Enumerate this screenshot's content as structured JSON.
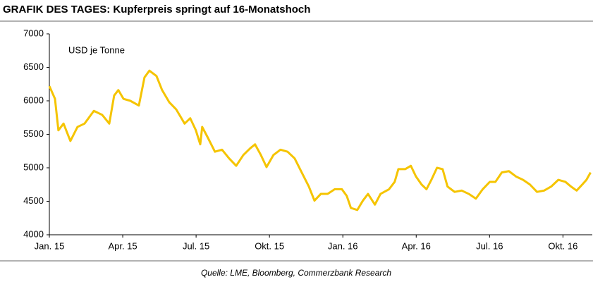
{
  "chart_data": {
    "type": "line",
    "title": "GRAFIK DES TAGES:  Kupferpreis springt auf 16-Monatshoch",
    "annotation": "USD je Tonne",
    "source": "Quelle: LME, Bloomberg, Commerzbank Research",
    "series": [
      {
        "name": "Kupferpreis",
        "color": "#f5c400",
        "x": [
          0,
          0.23,
          0.37,
          0.58,
          0.86,
          1.15,
          1.44,
          1.82,
          2.16,
          2.45,
          2.65,
          2.82,
          3.03,
          3.31,
          3.66,
          3.89,
          4.09,
          4.38,
          4.61,
          4.9,
          5.19,
          5.53,
          5.76,
          5.99,
          6.17,
          6.25,
          6.48,
          6.77,
          7.06,
          7.35,
          7.64,
          7.93,
          8.21,
          8.41,
          8.65,
          8.88,
          9.16,
          9.45,
          9.74,
          10.03,
          10.32,
          10.61,
          10.84,
          11.1,
          11.38,
          11.67,
          11.96,
          12.16,
          12.33,
          12.59,
          12.82,
          13.03,
          13.31,
          13.54,
          13.89,
          14.12,
          14.27,
          14.55,
          14.78,
          14.99,
          15.22,
          15.42,
          15.62,
          15.85,
          16.08,
          16.28,
          16.57,
          16.86,
          17.15,
          17.44,
          17.72,
          18.01,
          18.24,
          18.5,
          18.79,
          19.08,
          19.37,
          19.65,
          19.94,
          20.23,
          20.52,
          20.81,
          21.1,
          21.33,
          21.56,
          21.79,
          21.96,
          22.13
        ],
        "values": [
          6220,
          6030,
          5560,
          5660,
          5400,
          5610,
          5660,
          5850,
          5790,
          5660,
          6080,
          6160,
          6030,
          6000,
          5930,
          6350,
          6450,
          6370,
          6160,
          5980,
          5870,
          5660,
          5740,
          5560,
          5350,
          5610,
          5450,
          5240,
          5270,
          5140,
          5030,
          5190,
          5290,
          5350,
          5190,
          5010,
          5190,
          5270,
          5240,
          5140,
          4930,
          4720,
          4510,
          4610,
          4610,
          4680,
          4680,
          4580,
          4400,
          4370,
          4510,
          4610,
          4450,
          4610,
          4680,
          4790,
          4980,
          4980,
          5030,
          4870,
          4750,
          4680,
          4820,
          5000,
          4980,
          4720,
          4640,
          4660,
          4610,
          4540,
          4680,
          4790,
          4790,
          4930,
          4950,
          4870,
          4820,
          4750,
          4640,
          4660,
          4720,
          4820,
          4790,
          4720,
          4660,
          4750,
          4820,
          4930
        ]
      }
    ],
    "xlim": [
      0,
      22.2
    ],
    "xticks": [
      {
        "value": 0,
        "label": "Jan. 15"
      },
      {
        "value": 3,
        "label": "Apr. 15"
      },
      {
        "value": 6,
        "label": "Jul. 15"
      },
      {
        "value": 9,
        "label": "Okt. 15"
      },
      {
        "value": 12,
        "label": "Jan. 16"
      },
      {
        "value": 15,
        "label": "Apr. 16"
      },
      {
        "value": 18,
        "label": "Jul. 16"
      },
      {
        "value": 21,
        "label": "Okt. 16"
      }
    ],
    "ylim": [
      4000,
      7000
    ],
    "yticks": [
      4000,
      4500,
      5000,
      5500,
      6000,
      6500,
      7000
    ]
  }
}
